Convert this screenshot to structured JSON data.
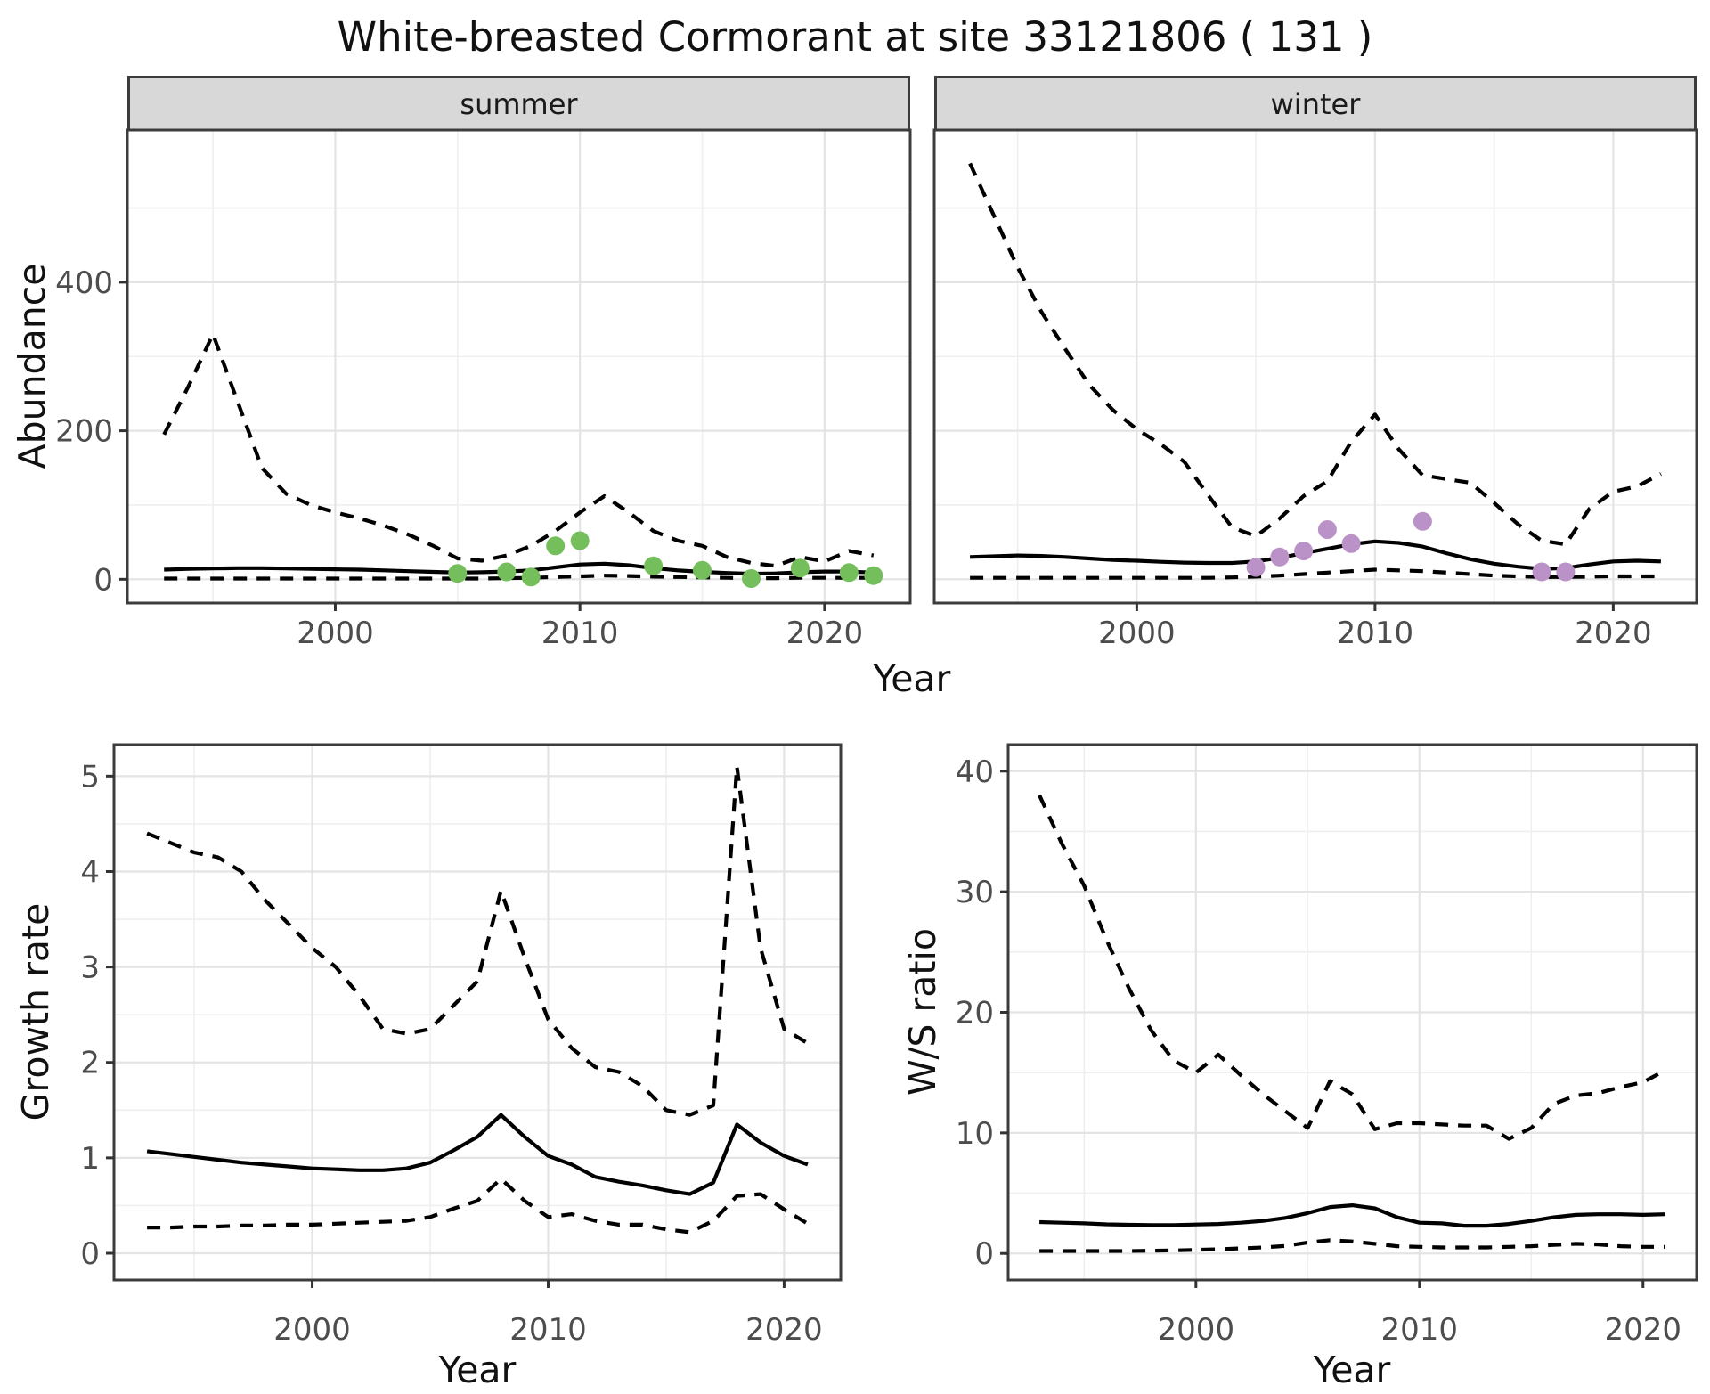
{
  "title": "White-breasted Cormorant at site 33121806 ( 131 )",
  "colors": {
    "summer_points": "#74bf5b",
    "winter_points": "#bb92c8",
    "line": "#000000",
    "grid_major": "#e4e4e4",
    "grid_minor": "#efefef",
    "panel_border": "#3c3c3c",
    "strip_fill": "#d8d8d8",
    "tick_text": "#4d4d4d",
    "axis_text": "#111111"
  },
  "chart_data": [
    {
      "id": "summer",
      "type": "line",
      "facet_label": "summer",
      "xlabel": "Year",
      "ylabel": "Abundance",
      "xlim": [
        1991.5,
        2023.5
      ],
      "ylim": [
        -32,
        605
      ],
      "xticks": [
        2000,
        2010,
        2020
      ],
      "xminor": [
        1995,
        2005,
        2015
      ],
      "yticks": [
        0,
        200,
        400
      ],
      "yminor": [
        100,
        300,
        500
      ],
      "x": [
        1993,
        1994,
        1995,
        1996,
        1997,
        1998,
        1999,
        2000,
        2001,
        2002,
        2003,
        2004,
        2005,
        2006,
        2007,
        2008,
        2009,
        2010,
        2011,
        2012,
        2013,
        2014,
        2015,
        2016,
        2017,
        2018,
        2019,
        2020,
        2021,
        2022
      ],
      "series": [
        {
          "name": "upper-ci",
          "style": "dashed",
          "values": [
            195,
            260,
            330,
            240,
            150,
            115,
            100,
            90,
            82,
            72,
            60,
            45,
            28,
            25,
            32,
            45,
            65,
            90,
            112,
            90,
            65,
            52,
            45,
            30,
            22,
            18,
            30,
            24,
            38,
            32
          ]
        },
        {
          "name": "lower-ci",
          "style": "dashed",
          "values": [
            1,
            1,
            1,
            1,
            1,
            1,
            1,
            1,
            1,
            1,
            1,
            1,
            1,
            1,
            1.5,
            2,
            3,
            4,
            5,
            4.5,
            3.5,
            3,
            2.5,
            2,
            1.5,
            1.5,
            2,
            2,
            2,
            2
          ]
        },
        {
          "name": "median",
          "style": "solid",
          "values": [
            13,
            14,
            14.5,
            15,
            15,
            14.5,
            14,
            13.5,
            13,
            12,
            11,
            10,
            9,
            9.5,
            10.5,
            12,
            16,
            20,
            21,
            19,
            15,
            12,
            10,
            8.5,
            7.5,
            8,
            9.5,
            10.5,
            10.5,
            9
          ]
        }
      ],
      "points": {
        "name": "summer-observations",
        "color_key": "summer_points",
        "data": [
          [
            2005,
            8
          ],
          [
            2007,
            10
          ],
          [
            2008,
            3
          ],
          [
            2009,
            45
          ],
          [
            2010,
            52
          ],
          [
            2013,
            18
          ],
          [
            2015,
            12
          ],
          [
            2017,
            1
          ],
          [
            2019,
            15
          ],
          [
            2021,
            9
          ],
          [
            2022,
            5
          ]
        ]
      }
    },
    {
      "id": "winter",
      "type": "line",
      "facet_label": "winter",
      "xlabel": "Year",
      "ylabel": "Abundance",
      "xlim": [
        1991.5,
        2023.5
      ],
      "ylim": [
        -32,
        605
      ],
      "xticks": [
        2000,
        2010,
        2020
      ],
      "xminor": [
        1995,
        2005,
        2015
      ],
      "yticks": [
        0,
        200,
        400
      ],
      "yminor": [
        100,
        300,
        500
      ],
      "x": [
        1993,
        1994,
        1995,
        1996,
        1997,
        1998,
        1999,
        2000,
        2001,
        2002,
        2003,
        2004,
        2005,
        2006,
        2007,
        2008,
        2009,
        2010,
        2011,
        2012,
        2013,
        2014,
        2015,
        2016,
        2017,
        2018,
        2019,
        2020,
        2021,
        2022
      ],
      "series": [
        {
          "name": "upper-ci",
          "style": "dashed",
          "values": [
            560,
            490,
            420,
            360,
            310,
            262,
            228,
            202,
            182,
            158,
            113,
            70,
            58,
            82,
            112,
            132,
            185,
            222,
            175,
            140,
            135,
            130,
            103,
            74,
            52,
            47,
            95,
            118,
            125,
            142
          ]
        },
        {
          "name": "lower-ci",
          "style": "dashed",
          "values": [
            2,
            2,
            2,
            2,
            2,
            2,
            2,
            2,
            2,
            2,
            2,
            2.5,
            3.5,
            5,
            7,
            9,
            11,
            13,
            12,
            11,
            9,
            7,
            5,
            4,
            3,
            3,
            3.5,
            4,
            4,
            4
          ]
        },
        {
          "name": "median",
          "style": "solid",
          "values": [
            30,
            31,
            32,
            31.5,
            30,
            28,
            26,
            25,
            23.5,
            22.5,
            22,
            22,
            24,
            29,
            35,
            41,
            47,
            51,
            49,
            44,
            35,
            27,
            21,
            17,
            14,
            15,
            20,
            24,
            25,
            24
          ]
        }
      ],
      "points": {
        "name": "winter-observations",
        "color_key": "winter_points",
        "data": [
          [
            2005,
            16
          ],
          [
            2006,
            30
          ],
          [
            2007,
            38
          ],
          [
            2008,
            67
          ],
          [
            2009,
            48
          ],
          [
            2012,
            78
          ],
          [
            2017,
            10
          ],
          [
            2018,
            10
          ]
        ]
      }
    },
    {
      "id": "growth",
      "type": "line",
      "facet_label": "",
      "xlabel": "Year",
      "ylabel": "Growth rate",
      "xlim": [
        1991.6,
        2022.4
      ],
      "ylim": [
        -0.28,
        5.33
      ],
      "xticks": [
        2000,
        2010,
        2020
      ],
      "xminor": [
        1995,
        2005,
        2015
      ],
      "yticks": [
        0,
        1,
        2,
        3,
        4,
        5
      ],
      "yminor": [
        0.5,
        1.5,
        2.5,
        3.5,
        4.5
      ],
      "x": [
        1993,
        1994,
        1995,
        1996,
        1997,
        1998,
        1999,
        2000,
        2001,
        2002,
        2003,
        2004,
        2005,
        2006,
        2007,
        2008,
        2009,
        2010,
        2011,
        2012,
        2013,
        2014,
        2015,
        2016,
        2017,
        2018,
        2019,
        2020,
        2021
      ],
      "series": [
        {
          "name": "upper-ci",
          "style": "dashed",
          "values": [
            4.4,
            4.3,
            4.2,
            4.15,
            4.0,
            3.7,
            3.45,
            3.2,
            3.0,
            2.7,
            2.35,
            2.3,
            2.35,
            2.6,
            2.85,
            3.8,
            3.1,
            2.45,
            2.15,
            1.95,
            1.9,
            1.75,
            1.5,
            1.45,
            1.55,
            5.1,
            3.2,
            2.35,
            2.2
          ]
        },
        {
          "name": "lower-ci",
          "style": "dashed",
          "values": [
            0.27,
            0.27,
            0.28,
            0.28,
            0.29,
            0.29,
            0.3,
            0.3,
            0.31,
            0.32,
            0.33,
            0.34,
            0.38,
            0.47,
            0.55,
            0.78,
            0.55,
            0.38,
            0.41,
            0.34,
            0.3,
            0.3,
            0.25,
            0.22,
            0.34,
            0.6,
            0.62,
            0.46,
            0.31
          ]
        },
        {
          "name": "median",
          "style": "solid",
          "values": [
            1.07,
            1.04,
            1.01,
            0.98,
            0.95,
            0.93,
            0.91,
            0.89,
            0.88,
            0.87,
            0.87,
            0.89,
            0.95,
            1.08,
            1.22,
            1.45,
            1.22,
            1.02,
            0.93,
            0.8,
            0.75,
            0.71,
            0.66,
            0.62,
            0.74,
            1.35,
            1.16,
            1.02,
            0.93
          ]
        }
      ]
    },
    {
      "id": "ws",
      "type": "line",
      "facet_label": "",
      "xlabel": "Year",
      "ylabel": "W/S ratio",
      "xlim": [
        1991.6,
        2022.4
      ],
      "ylim": [
        -2.2,
        42.2
      ],
      "xticks": [
        2000,
        2010,
        2020
      ],
      "xminor": [
        1995,
        2005,
        2015
      ],
      "yticks": [
        0,
        10,
        20,
        30,
        40
      ],
      "yminor": [
        5,
        15,
        25,
        35
      ],
      "x": [
        1993,
        1994,
        1995,
        1996,
        1997,
        1998,
        1999,
        2000,
        2001,
        2002,
        2003,
        2004,
        2005,
        2006,
        2007,
        2008,
        2009,
        2010,
        2011,
        2012,
        2013,
        2014,
        2015,
        2016,
        2017,
        2018,
        2019,
        2020,
        2021
      ],
      "series": [
        {
          "name": "upper-ci",
          "style": "dashed",
          "values": [
            38,
            34,
            30.5,
            26,
            22,
            18.5,
            16,
            15,
            16.5,
            14.8,
            13.2,
            11.8,
            10.4,
            14.3,
            13.2,
            10.3,
            10.8,
            10.8,
            10.7,
            10.6,
            10.6,
            9.5,
            10.4,
            12.4,
            13.1,
            13.3,
            13.8,
            14.2,
            15.2
          ]
        },
        {
          "name": "lower-ci",
          "style": "dashed",
          "values": [
            0.2,
            0.2,
            0.2,
            0.2,
            0.2,
            0.22,
            0.25,
            0.3,
            0.35,
            0.42,
            0.5,
            0.62,
            0.9,
            1.1,
            1.0,
            0.8,
            0.6,
            0.55,
            0.5,
            0.5,
            0.5,
            0.55,
            0.6,
            0.7,
            0.8,
            0.75,
            0.6,
            0.55,
            0.55
          ]
        },
        {
          "name": "median",
          "style": "solid",
          "values": [
            2.6,
            2.55,
            2.5,
            2.42,
            2.38,
            2.36,
            2.36,
            2.4,
            2.45,
            2.55,
            2.7,
            2.95,
            3.35,
            3.85,
            4.0,
            3.75,
            3.0,
            2.55,
            2.5,
            2.3,
            2.3,
            2.45,
            2.7,
            3.0,
            3.2,
            3.25,
            3.25,
            3.2,
            3.25
          ]
        }
      ]
    }
  ]
}
